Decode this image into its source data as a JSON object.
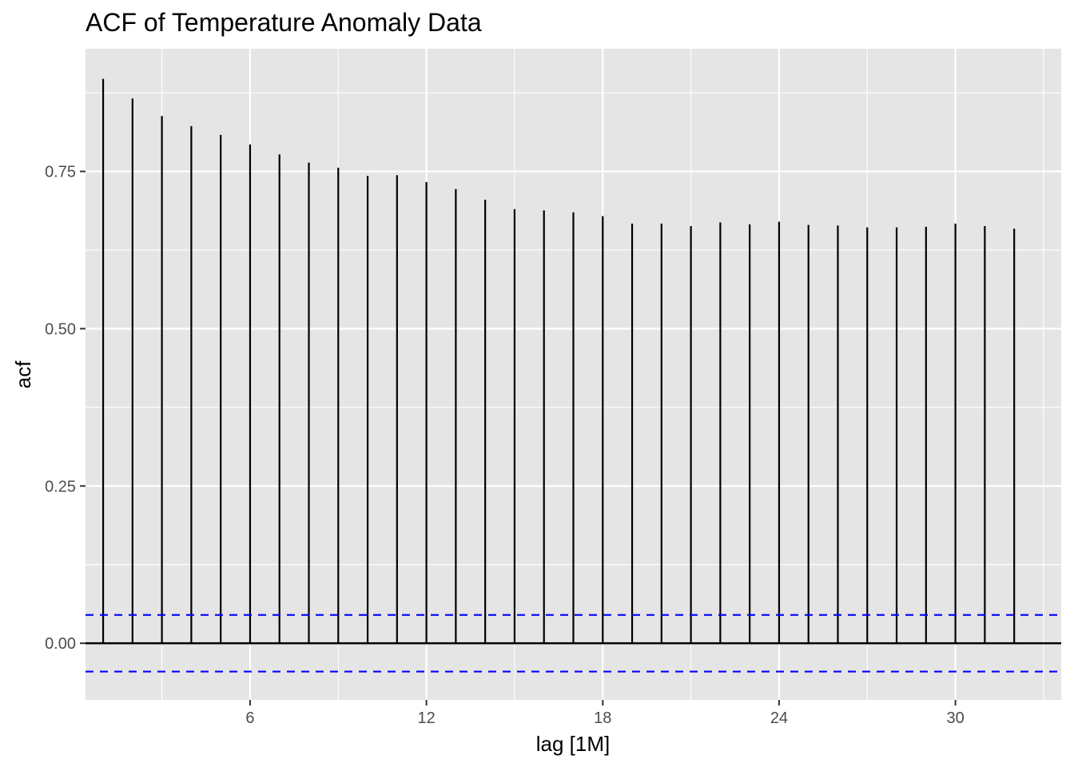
{
  "chart_data": {
    "type": "bar",
    "title": "ACF of Temperature Anomaly Data",
    "xlabel": "lag [1M]",
    "ylabel": "acf",
    "x": [
      1,
      2,
      3,
      4,
      5,
      6,
      7,
      8,
      9,
      10,
      11,
      12,
      13,
      14,
      15,
      16,
      17,
      18,
      19,
      20,
      21,
      22,
      23,
      24,
      25,
      26,
      27,
      28,
      29,
      30,
      31,
      32
    ],
    "values": [
      0.897,
      0.866,
      0.838,
      0.822,
      0.808,
      0.793,
      0.777,
      0.764,
      0.756,
      0.743,
      0.744,
      0.733,
      0.722,
      0.705,
      0.69,
      0.688,
      0.685,
      0.679,
      0.667,
      0.667,
      0.663,
      0.669,
      0.666,
      0.67,
      0.665,
      0.664,
      0.661,
      0.661,
      0.662,
      0.667,
      0.663,
      0.659
    ],
    "x_ticks": [
      6,
      12,
      18,
      24,
      30
    ],
    "x_tick_labels": [
      "6",
      "12",
      "18",
      "24",
      "30"
    ],
    "y_ticks": [
      0,
      0.25,
      0.5,
      0.75
    ],
    "y_tick_labels": [
      "0.00",
      "0.25",
      "0.50",
      "0.75"
    ],
    "xlim": [
      0.4,
      33.6
    ],
    "ylim": [
      -0.09,
      0.945
    ],
    "confidence_bound": 0.045,
    "grid": true,
    "legend": "none",
    "colors": {
      "panel_background": "#e5e5e5",
      "grid": "#ffffff",
      "segments": "#000000",
      "confidence_lines": "#0000ff",
      "zero_line": "#000000",
      "tick_text": "#4d4d4d"
    }
  }
}
